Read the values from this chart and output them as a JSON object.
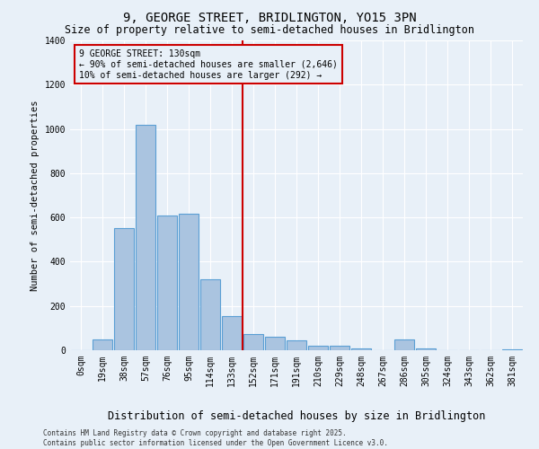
{
  "title": "9, GEORGE STREET, BRIDLINGTON, YO15 3PN",
  "subtitle": "Size of property relative to semi-detached houses in Bridlington",
  "xlabel": "Distribution of semi-detached houses by size in Bridlington",
  "ylabel": "Number of semi-detached properties",
  "categories": [
    "0sqm",
    "19sqm",
    "38sqm",
    "57sqm",
    "76sqm",
    "95sqm",
    "114sqm",
    "133sqm",
    "152sqm",
    "171sqm",
    "191sqm",
    "210sqm",
    "229sqm",
    "248sqm",
    "267sqm",
    "286sqm",
    "305sqm",
    "324sqm",
    "343sqm",
    "362sqm",
    "381sqm"
  ],
  "values": [
    0,
    50,
    550,
    1020,
    610,
    615,
    320,
    155,
    75,
    60,
    45,
    20,
    20,
    10,
    0,
    50,
    10,
    0,
    0,
    0,
    5
  ],
  "bar_color": "#aac4e0",
  "bar_edge_color": "#5a9fd4",
  "background_color": "#e8f0f8",
  "grid_color": "#ffffff",
  "red_line_index": 7,
  "red_line_color": "#cc0000",
  "annotation_text": "9 GEORGE STREET: 130sqm\n← 90% of semi-detached houses are smaller (2,646)\n10% of semi-detached houses are larger (292) →",
  "ylim": [
    0,
    1400
  ],
  "yticks": [
    0,
    200,
    400,
    600,
    800,
    1000,
    1200,
    1400
  ],
  "footer": "Contains HM Land Registry data © Crown copyright and database right 2025.\nContains public sector information licensed under the Open Government Licence v3.0.",
  "title_fontsize": 10,
  "subtitle_fontsize": 8.5,
  "xlabel_fontsize": 8.5,
  "ylabel_fontsize": 7.5,
  "tick_fontsize": 7,
  "annotation_fontsize": 7,
  "footer_fontsize": 5.5
}
